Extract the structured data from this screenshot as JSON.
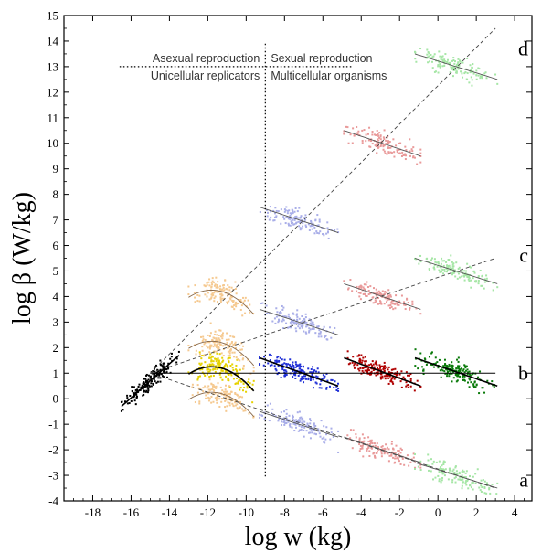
{
  "chart_data": {
    "type": "scatter",
    "xlabel": "log w (kg)",
    "ylabel": "log β (W/kg)",
    "xlim": [
      -19.5,
      4.9
    ],
    "ylim": [
      -4,
      15
    ],
    "xticks": [
      -18,
      -16,
      -14,
      -12,
      -10,
      -8,
      -6,
      -4,
      -2,
      0,
      2,
      4
    ],
    "yticks": [
      -4,
      -3,
      -2,
      -1,
      0,
      1,
      2,
      3,
      4,
      5,
      6,
      7,
      8,
      9,
      10,
      11,
      12,
      13,
      14,
      15
    ],
    "grid": false,
    "vline_x": -9,
    "region_labels": {
      "top_left": "Asexual reproduction",
      "top_right": "Sexual reproduction",
      "bottom_left": "Unicellular replicators",
      "bottom_right": "Multicellular organisms"
    },
    "panel_labels": [
      {
        "text": "d",
        "y": 13.7
      },
      {
        "text": "c",
        "y": 5.6
      },
      {
        "text": "b",
        "y": 1.0
      },
      {
        "text": "a",
        "y": -3.2
      }
    ],
    "colors": {
      "black": "#000000",
      "yellow": "#e6d200",
      "blue": "#1f2fd6",
      "red": "#b00000",
      "green": "#0a7a0a",
      "light_orange": "#f5c990",
      "light_blue": "#a9aee8",
      "light_red": "#e99a9a",
      "light_green": "#a6e6a6",
      "trend_line": "#555555",
      "hump_curve": "#8a6a4a"
    },
    "reference_lines": [
      {
        "name": "b",
        "x": [
          -15,
          3
        ],
        "y": [
          1,
          1
        ],
        "style": "solid"
      },
      {
        "name": "a",
        "x": [
          -15,
          3
        ],
        "y": [
          1,
          -3.5
        ],
        "style": "dashed"
      },
      {
        "name": "c",
        "x": [
          -15,
          3
        ],
        "y": [
          1,
          5.5
        ],
        "style": "dashed"
      },
      {
        "name": "d",
        "x": [
          -15,
          3
        ],
        "y": [
          1,
          14.5
        ],
        "style": "dashed"
      }
    ],
    "clusters": [
      {
        "color": "black",
        "x": [
          -16.5,
          -13.5
        ],
        "fit": [
          [
            -16.5,
            -0.3
          ],
          [
            -13.5,
            1.7
          ]
        ],
        "spread": 0.18
      },
      {
        "color": "yellow",
        "x": [
          -13,
          -9.6
        ],
        "curve": {
          "peak_x": -11.8,
          "peak_y": 1.25,
          "ends_y": 0.3
        },
        "spread": 0.25
      },
      {
        "color": "blue",
        "x": [
          -9.3,
          -5.2
        ],
        "fit": [
          [
            -9.3,
            1.6
          ],
          [
            -5.2,
            0.5
          ]
        ],
        "spread": 0.2
      },
      {
        "color": "red",
        "x": [
          -4.9,
          -0.9
        ],
        "fit": [
          [
            -4.9,
            1.6
          ],
          [
            -0.9,
            0.5
          ]
        ],
        "spread": 0.2
      },
      {
        "color": "green",
        "x": [
          -1.2,
          3.1
        ],
        "fit": [
          [
            -1.2,
            1.6
          ],
          [
            3.1,
            0.5
          ]
        ],
        "spread": 0.2
      },
      {
        "color": "light_orange",
        "x": [
          -13,
          -9.6
        ],
        "curve": {
          "peak_x": -11.8,
          "peak_y": 4.25,
          "ends_y": 3.3
        },
        "spread": 0.25
      },
      {
        "color": "light_orange",
        "x": [
          -13,
          -9.6
        ],
        "curve": {
          "peak_x": -11.8,
          "peak_y": 2.25,
          "ends_y": 1.3
        },
        "spread": 0.25
      },
      {
        "color": "light_orange",
        "x": [
          -13,
          -9.6
        ],
        "curve": {
          "peak_x": -11.8,
          "peak_y": 0.25,
          "ends_y": -0.7
        },
        "spread": 0.25
      },
      {
        "color": "light_blue",
        "x": [
          -9.3,
          -5.2
        ],
        "fit": [
          [
            -9.3,
            7.5
          ],
          [
            -5.2,
            6.5
          ]
        ],
        "spread": 0.2
      },
      {
        "color": "light_blue",
        "x": [
          -9.3,
          -5.2
        ],
        "fit": [
          [
            -9.3,
            3.5
          ],
          [
            -5.2,
            2.5
          ]
        ],
        "spread": 0.2
      },
      {
        "color": "light_blue",
        "x": [
          -9.3,
          -5.2
        ],
        "fit": [
          [
            -9.3,
            -0.5
          ],
          [
            -5.2,
            -1.5
          ]
        ],
        "spread": 0.2
      },
      {
        "color": "light_red",
        "x": [
          -4.9,
          -0.9
        ],
        "fit": [
          [
            -4.9,
            10.5
          ],
          [
            -0.9,
            9.5
          ]
        ],
        "spread": 0.2
      },
      {
        "color": "light_red",
        "x": [
          -4.9,
          -0.9
        ],
        "fit": [
          [
            -4.9,
            4.5
          ],
          [
            -0.9,
            3.5
          ]
        ],
        "spread": 0.2
      },
      {
        "color": "light_red",
        "x": [
          -4.9,
          -0.9
        ],
        "fit": [
          [
            -4.9,
            -1.5
          ],
          [
            -0.9,
            -2.5
          ]
        ],
        "spread": 0.2
      },
      {
        "color": "light_green",
        "x": [
          -1.2,
          3.1
        ],
        "fit": [
          [
            -1.2,
            13.5
          ],
          [
            3.1,
            12.5
          ]
        ],
        "spread": 0.2
      },
      {
        "color": "light_green",
        "x": [
          -1.2,
          3.1
        ],
        "fit": [
          [
            -1.2,
            5.5
          ],
          [
            3.1,
            4.5
          ]
        ],
        "spread": 0.2
      },
      {
        "color": "light_green",
        "x": [
          -1.2,
          3.1
        ],
        "fit": [
          [
            -1.2,
            -2.5
          ],
          [
            3.1,
            -3.5
          ]
        ],
        "spread": 0.2
      }
    ]
  }
}
